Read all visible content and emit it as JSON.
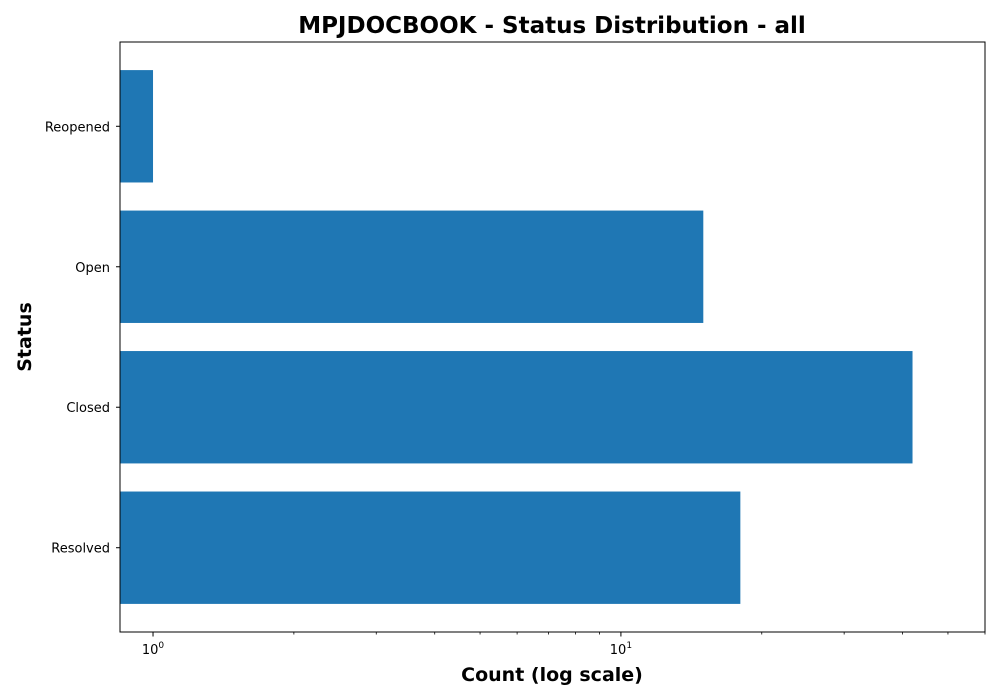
{
  "chart_data": {
    "type": "bar",
    "orientation": "horizontal",
    "title": "MPJDOCBOOK - Status Distribution - all",
    "xlabel": "Count (log scale)",
    "ylabel": "Status",
    "x_scale": "log",
    "xlim": [
      0.85,
      60
    ],
    "categories": [
      "Resolved",
      "Closed",
      "Open",
      "Reopened"
    ],
    "values": [
      18,
      42,
      15,
      1
    ],
    "x_ticks": [
      {
        "value": 1,
        "base": "10",
        "exp": "0"
      },
      {
        "value": 10,
        "base": "10",
        "exp": "1"
      }
    ],
    "bar_color": "#1f77b4",
    "grid": false
  }
}
